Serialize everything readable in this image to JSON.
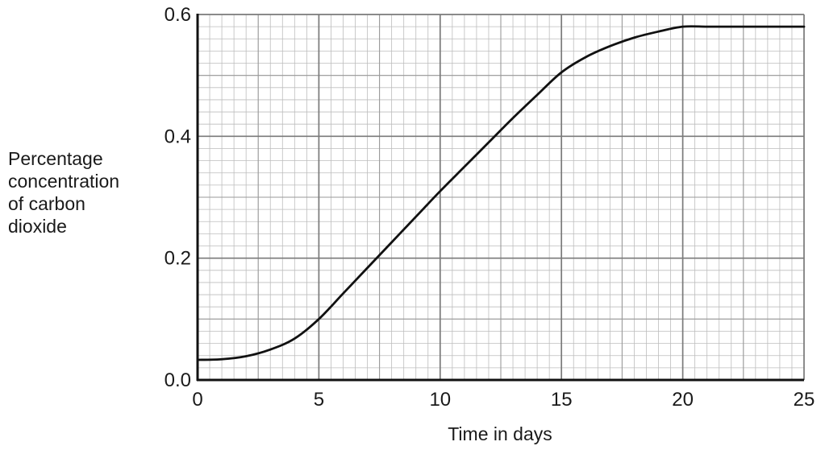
{
  "chart_data": {
    "type": "line",
    "title": "",
    "xlabel": "Time in days",
    "ylabel": [
      "Percentage",
      "concentration",
      "of carbon",
      "dioxide"
    ],
    "xlim": [
      0,
      25
    ],
    "ylim": [
      0.0,
      0.6
    ],
    "x_ticks": [
      0,
      5,
      10,
      15,
      20,
      25
    ],
    "x_tick_labels": [
      "0",
      "5",
      "10",
      "15",
      "20",
      "25"
    ],
    "y_ticks": [
      0.0,
      0.2,
      0.4,
      0.6
    ],
    "y_tick_labels": [
      "0.0",
      "0.2",
      "0.4",
      "0.6"
    ],
    "grid": true,
    "series": [
      {
        "x": [
          0,
          1,
          2,
          3,
          4,
          5,
          6,
          7,
          8,
          9,
          10,
          11,
          12,
          13,
          14,
          15,
          16,
          17,
          18,
          19,
          20,
          21,
          22,
          23,
          24,
          25
        ],
        "y": [
          0.033,
          0.034,
          0.039,
          0.05,
          0.068,
          0.1,
          0.142,
          0.184,
          0.226,
          0.268,
          0.31,
          0.35,
          0.39,
          0.43,
          0.468,
          0.505,
          0.53,
          0.548,
          0.562,
          0.572,
          0.58,
          0.58,
          0.58,
          0.58,
          0.58,
          0.58
        ],
        "color": "#111111"
      }
    ]
  }
}
